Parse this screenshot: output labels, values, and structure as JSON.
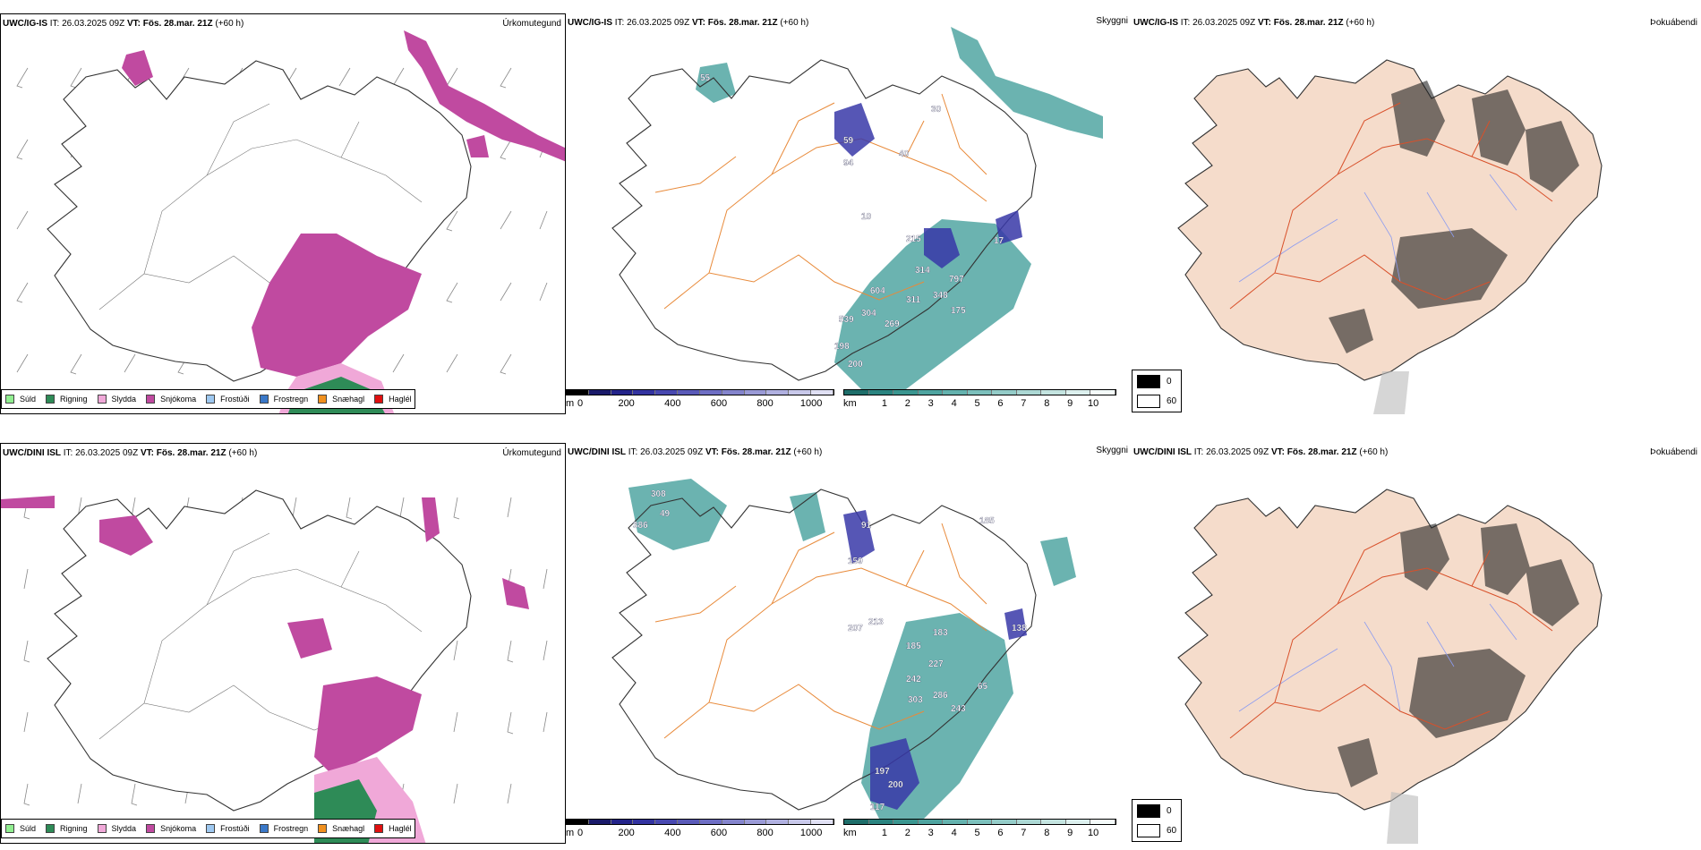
{
  "colors": {
    "suld": "#90ee90",
    "rigning": "#2e8b57",
    "slydda": "#f0a8d8",
    "snjokoma": "#c04aa0",
    "frostudi": "#9ec8f0",
    "frostregn": "#3a78c8",
    "snaehagl": "#f0901e",
    "haglel": "#e01010",
    "roads": "#e88a3a",
    "roads_red": "#d8502a",
    "land": "#f5dccb",
    "visibility": "#3a9a96",
    "ceiling": "#3838a8",
    "rivers": "#8c9cf0"
  },
  "rows": [
    {
      "model": "UWC/IG-IS",
      "it_label": "IT:",
      "it_value": "26.03.2025 09Z",
      "vt_label": "VT:",
      "vt_value": "Fös. 28.mar. 21Z",
      "lead": "(+60 h)",
      "ceiling_labels": [
        "55",
        "59",
        "94",
        "40",
        "30",
        "10",
        "215",
        "314",
        "797",
        "604",
        "304",
        "311",
        "348",
        "175",
        "539",
        "269",
        "198",
        "200",
        "17"
      ]
    },
    {
      "model": "UWC/DINI ISL",
      "it_label": "IT:",
      "it_value": "26.03.2025 09Z",
      "vt_label": "VT:",
      "vt_value": "Fös. 28.mar. 21Z",
      "lead": "(+60 h)",
      "ceiling_labels": [
        "308",
        "49",
        "386",
        "91",
        "159",
        "185",
        "207",
        "213",
        "183",
        "138",
        "185",
        "227",
        "242",
        "303",
        "286",
        "243",
        "65",
        "197",
        "200",
        "117"
      ]
    }
  ],
  "panel_titles": {
    "precip": "Úrkomutegund",
    "visibility": "Skyggni",
    "fog": "Þokuábendi"
  },
  "precip_legend": [
    {
      "label": "Súld",
      "color_key": "suld"
    },
    {
      "label": "Rigning",
      "color_key": "rigning"
    },
    {
      "label": "Slydda",
      "color_key": "slydda"
    },
    {
      "label": "Snjókoma",
      "color_key": "snjokoma"
    },
    {
      "label": "Frostúði",
      "color_key": "frostudi"
    },
    {
      "label": "Frostregn",
      "color_key": "frostregn"
    },
    {
      "label": "Snæhagl",
      "color_key": "snaehagl"
    },
    {
      "label": "Haglél",
      "color_key": "haglel"
    }
  ],
  "ceiling_bar": {
    "unit": "m",
    "ticks": [
      "0",
      "200",
      "400",
      "600",
      "800",
      "1000"
    ],
    "tick_values": [
      0,
      200,
      400,
      600,
      800,
      1000
    ],
    "max": 1100,
    "colors": [
      "#000000",
      "#1a1a6a",
      "#24248a",
      "#3333a0",
      "#4848b0",
      "#5a5ab8",
      "#6e6ec4",
      "#8484cc",
      "#9a9ad6",
      "#b0b0e0",
      "#c8c8ea",
      "#e0e0f4"
    ]
  },
  "vis_bar": {
    "unit": "km",
    "ticks": [
      "1",
      "2",
      "3",
      "4",
      "5",
      "6",
      "7",
      "8",
      "9",
      "10"
    ],
    "tick_values": [
      1,
      2,
      3,
      4,
      5,
      6,
      7,
      8,
      9,
      10
    ],
    "max": 11,
    "colors": [
      "#1e6e6a",
      "#2a8480",
      "#3a9690",
      "#4ea4a0",
      "#64b2ae",
      "#7cc0bc",
      "#94ccc8",
      "#acd8d4",
      "#c4e4e0",
      "#dcf0ee",
      "#f4fbfa"
    ]
  },
  "cloud_legend": [
    "0",
    "60"
  ]
}
